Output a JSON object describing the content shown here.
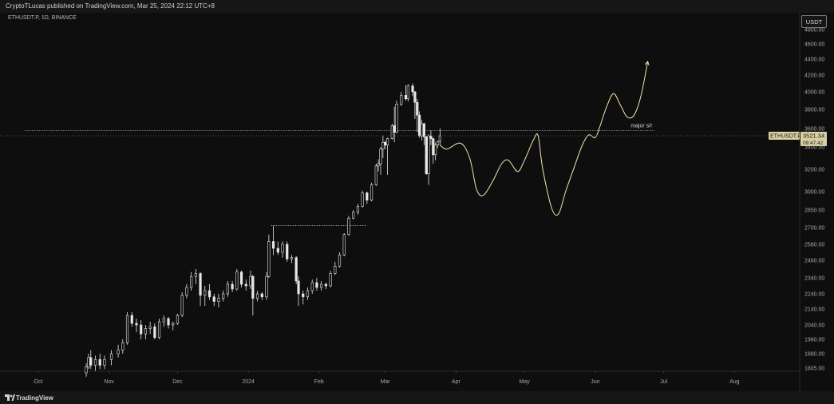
{
  "header": {
    "publish_text": "CryptoTLucas published on TradingView.com, Mar 25, 2024 22:12 UTC+8"
  },
  "chart_header": {
    "symbol_text": "ETHUSDT.P, 1D, BINANCE"
  },
  "currency_button": {
    "label": "USDT"
  },
  "footer": {
    "brand_label": "TradingView"
  },
  "colors": {
    "background": "#0e0e0e",
    "candles": "#e6e6e6",
    "projection": "#f4e6a8",
    "price_tag": "#d8cfa3",
    "sr_line": "#bdbdbd"
  },
  "chart_data": {
    "type": "candlestick",
    "symbol": "ETHUSDT.P",
    "interval": "1D",
    "exchange": "BINANCE",
    "y_axis": {
      "ticks": [
        4800,
        4600,
        4400,
        4200,
        4000,
        3800,
        3600,
        3400,
        3200,
        3000,
        2850,
        2700,
        2580,
        2460,
        2340,
        2240,
        2140,
        2040,
        1960,
        1880,
        1805
      ],
      "tick_labels": [
        "4800.00",
        "4600.00",
        "4400.00",
        "4200.00",
        "4000.00",
        "3800.00",
        "3600.00",
        "3400.00",
        "3200.00",
        "3000.00",
        "2850.00",
        "2700.00",
        "2580.00",
        "2460.00",
        "2340.00",
        "2240.00",
        "2140.00",
        "2040.00",
        "1960.00",
        "1880.00",
        "1805.00"
      ]
    },
    "x_axis": {
      "tick_labels": [
        "Oct",
        "Nov",
        "Dec",
        "2024",
        "Feb",
        "Mar",
        "Apr",
        "May",
        "Jun",
        "Jul",
        "Aug"
      ],
      "tick_dates": [
        "2023-10-01",
        "2023-11-01",
        "2023-12-01",
        "2024-01-01",
        "2024-02-01",
        "2024-03-01",
        "2024-04-01",
        "2024-05-01",
        "2024-06-01",
        "2024-07-01",
        "2024-08-01"
      ]
    },
    "last_price": {
      "symbol_label": "ETHUSDT.P",
      "value": "3521.34",
      "countdown": "09:47:42"
    },
    "annotations": [
      {
        "type": "horizontal_line",
        "label": "major s/r",
        "price": 3580,
        "from_date": "2023-09-25",
        "to_date": "2024-06-27"
      },
      {
        "type": "horizontal_line",
        "label": "",
        "price": 2717,
        "from_date": "2024-01-11",
        "to_date": "2024-02-22"
      },
      {
        "type": "projection_path",
        "label": "",
        "points": [
          {
            "date": "2024-03-25",
            "price": 3420
          },
          {
            "date": "2024-03-28",
            "price": 3380
          },
          {
            "date": "2024-04-03",
            "price": 3440
          },
          {
            "date": "2024-04-07",
            "price": 3300
          },
          {
            "date": "2024-04-10",
            "price": 3020
          },
          {
            "date": "2024-04-13",
            "price": 2970
          },
          {
            "date": "2024-04-17",
            "price": 3090
          },
          {
            "date": "2024-04-21",
            "price": 3250
          },
          {
            "date": "2024-04-24",
            "price": 3280
          },
          {
            "date": "2024-04-28",
            "price": 3180
          },
          {
            "date": "2024-05-01",
            "price": 3280
          },
          {
            "date": "2024-05-05",
            "price": 3480
          },
          {
            "date": "2024-05-07",
            "price": 3520
          },
          {
            "date": "2024-05-09",
            "price": 3200
          },
          {
            "date": "2024-05-13",
            "price": 2860
          },
          {
            "date": "2024-05-16",
            "price": 2820
          },
          {
            "date": "2024-05-19",
            "price": 3000
          },
          {
            "date": "2024-05-23",
            "price": 3230
          },
          {
            "date": "2024-05-26",
            "price": 3400
          },
          {
            "date": "2024-05-29",
            "price": 3530
          },
          {
            "date": "2024-06-01",
            "price": 3500
          },
          {
            "date": "2024-06-03",
            "price": 3620
          },
          {
            "date": "2024-06-06",
            "price": 3830
          },
          {
            "date": "2024-06-09",
            "price": 3980
          },
          {
            "date": "2024-06-12",
            "price": 3850
          },
          {
            "date": "2024-06-15",
            "price": 3720
          },
          {
            "date": "2024-06-18",
            "price": 3740
          },
          {
            "date": "2024-06-21",
            "price": 3950
          },
          {
            "date": "2024-06-24",
            "price": 4370
          }
        ]
      }
    ],
    "candles": [
      {
        "date": "2023-10-22",
        "open": 1780,
        "high": 1830,
        "low": 1760,
        "close": 1810
      },
      {
        "date": "2023-10-23",
        "open": 1810,
        "high": 1880,
        "low": 1800,
        "close": 1860
      },
      {
        "date": "2023-10-24",
        "open": 1860,
        "high": 1900,
        "low": 1800,
        "close": 1820
      },
      {
        "date": "2023-10-26",
        "open": 1820,
        "high": 1870,
        "low": 1790,
        "close": 1850
      },
      {
        "date": "2023-10-28",
        "open": 1850,
        "high": 1880,
        "low": 1800,
        "close": 1820
      },
      {
        "date": "2023-10-30",
        "open": 1820,
        "high": 1870,
        "low": 1800,
        "close": 1850
      },
      {
        "date": "2023-11-02",
        "open": 1850,
        "high": 1900,
        "low": 1820,
        "close": 1880
      },
      {
        "date": "2023-11-05",
        "open": 1880,
        "high": 1930,
        "low": 1860,
        "close": 1900
      },
      {
        "date": "2023-11-07",
        "open": 1900,
        "high": 1960,
        "low": 1880,
        "close": 1940
      },
      {
        "date": "2023-11-09",
        "open": 1940,
        "high": 2120,
        "low": 1930,
        "close": 2100
      },
      {
        "date": "2023-11-11",
        "open": 2100,
        "high": 2120,
        "low": 2030,
        "close": 2050
      },
      {
        "date": "2023-11-13",
        "open": 2050,
        "high": 2080,
        "low": 2000,
        "close": 2040
      },
      {
        "date": "2023-11-15",
        "open": 2040,
        "high": 2070,
        "low": 1960,
        "close": 1990
      },
      {
        "date": "2023-11-17",
        "open": 1990,
        "high": 2040,
        "low": 1960,
        "close": 2020
      },
      {
        "date": "2023-11-19",
        "open": 2020,
        "high": 2060,
        "low": 1990,
        "close": 2030
      },
      {
        "date": "2023-11-21",
        "open": 2030,
        "high": 2050,
        "low": 1960,
        "close": 1970
      },
      {
        "date": "2023-11-23",
        "open": 1970,
        "high": 2080,
        "low": 1960,
        "close": 2060
      },
      {
        "date": "2023-11-25",
        "open": 2060,
        "high": 2100,
        "low": 2030,
        "close": 2080
      },
      {
        "date": "2023-11-27",
        "open": 2080,
        "high": 2090,
        "low": 2020,
        "close": 2040
      },
      {
        "date": "2023-11-29",
        "open": 2040,
        "high": 2060,
        "low": 2010,
        "close": 2050
      },
      {
        "date": "2023-12-01",
        "open": 2050,
        "high": 2110,
        "low": 2040,
        "close": 2100
      },
      {
        "date": "2023-12-03",
        "open": 2100,
        "high": 2250,
        "low": 2090,
        "close": 2230
      },
      {
        "date": "2023-12-05",
        "open": 2230,
        "high": 2300,
        "low": 2210,
        "close": 2280
      },
      {
        "date": "2023-12-07",
        "open": 2280,
        "high": 2380,
        "low": 2260,
        "close": 2350
      },
      {
        "date": "2023-12-09",
        "open": 2350,
        "high": 2400,
        "low": 2300,
        "close": 2370
      },
      {
        "date": "2023-12-11",
        "open": 2370,
        "high": 2380,
        "low": 2160,
        "close": 2230
      },
      {
        "date": "2023-12-13",
        "open": 2230,
        "high": 2290,
        "low": 2160,
        "close": 2260
      },
      {
        "date": "2023-12-15",
        "open": 2260,
        "high": 2300,
        "low": 2200,
        "close": 2220
      },
      {
        "date": "2023-12-17",
        "open": 2220,
        "high": 2240,
        "low": 2160,
        "close": 2190
      },
      {
        "date": "2023-12-19",
        "open": 2190,
        "high": 2240,
        "low": 2150,
        "close": 2210
      },
      {
        "date": "2023-12-21",
        "open": 2210,
        "high": 2260,
        "low": 2190,
        "close": 2240
      },
      {
        "date": "2023-12-23",
        "open": 2240,
        "high": 2320,
        "low": 2220,
        "close": 2300
      },
      {
        "date": "2023-12-25",
        "open": 2300,
        "high": 2320,
        "low": 2250,
        "close": 2270
      },
      {
        "date": "2023-12-27",
        "open": 2270,
        "high": 2400,
        "low": 2260,
        "close": 2380
      },
      {
        "date": "2023-12-29",
        "open": 2380,
        "high": 2390,
        "low": 2280,
        "close": 2300
      },
      {
        "date": "2023-12-31",
        "open": 2300,
        "high": 2330,
        "low": 2260,
        "close": 2290
      },
      {
        "date": "2024-01-02",
        "open": 2290,
        "high": 2390,
        "low": 2270,
        "close": 2350
      },
      {
        "date": "2024-01-03",
        "open": 2350,
        "high": 2360,
        "low": 2100,
        "close": 2210
      },
      {
        "date": "2024-01-05",
        "open": 2210,
        "high": 2260,
        "low": 2190,
        "close": 2240
      },
      {
        "date": "2024-01-07",
        "open": 2240,
        "high": 2250,
        "low": 2200,
        "close": 2220
      },
      {
        "date": "2024-01-09",
        "open": 2220,
        "high": 2380,
        "low": 2200,
        "close": 2350
      },
      {
        "date": "2024-01-10",
        "open": 2350,
        "high": 2650,
        "low": 2340,
        "close": 2600
      },
      {
        "date": "2024-01-12",
        "open": 2600,
        "high": 2715,
        "low": 2500,
        "close": 2550
      },
      {
        "date": "2024-01-14",
        "open": 2550,
        "high": 2600,
        "low": 2500,
        "close": 2520
      },
      {
        "date": "2024-01-16",
        "open": 2520,
        "high": 2600,
        "low": 2480,
        "close": 2580
      },
      {
        "date": "2024-01-18",
        "open": 2580,
        "high": 2600,
        "low": 2450,
        "close": 2470
      },
      {
        "date": "2024-01-20",
        "open": 2470,
        "high": 2500,
        "low": 2440,
        "close": 2480
      },
      {
        "date": "2024-01-22",
        "open": 2480,
        "high": 2490,
        "low": 2300,
        "close": 2320
      },
      {
        "date": "2024-01-23",
        "open": 2320,
        "high": 2350,
        "low": 2160,
        "close": 2240
      },
      {
        "date": "2024-01-25",
        "open": 2240,
        "high": 2260,
        "low": 2170,
        "close": 2220
      },
      {
        "date": "2024-01-27",
        "open": 2220,
        "high": 2280,
        "low": 2200,
        "close": 2260
      },
      {
        "date": "2024-01-29",
        "open": 2260,
        "high": 2330,
        "low": 2240,
        "close": 2310
      },
      {
        "date": "2024-01-31",
        "open": 2310,
        "high": 2340,
        "low": 2260,
        "close": 2280
      },
      {
        "date": "2024-02-02",
        "open": 2280,
        "high": 2320,
        "low": 2260,
        "close": 2300
      },
      {
        "date": "2024-02-04",
        "open": 2300,
        "high": 2310,
        "low": 2270,
        "close": 2290
      },
      {
        "date": "2024-02-06",
        "open": 2290,
        "high": 2390,
        "low": 2280,
        "close": 2370
      },
      {
        "date": "2024-02-08",
        "open": 2370,
        "high": 2450,
        "low": 2360,
        "close": 2420
      },
      {
        "date": "2024-02-10",
        "open": 2420,
        "high": 2520,
        "low": 2410,
        "close": 2500
      },
      {
        "date": "2024-02-12",
        "open": 2500,
        "high": 2660,
        "low": 2490,
        "close": 2650
      },
      {
        "date": "2024-02-14",
        "open": 2650,
        "high": 2800,
        "low": 2640,
        "close": 2780
      },
      {
        "date": "2024-02-16",
        "open": 2780,
        "high": 2850,
        "low": 2770,
        "close": 2830
      },
      {
        "date": "2024-02-18",
        "open": 2830,
        "high": 2900,
        "low": 2810,
        "close": 2880
      },
      {
        "date": "2024-02-20",
        "open": 2880,
        "high": 3010,
        "low": 2870,
        "close": 2990
      },
      {
        "date": "2024-02-22",
        "open": 2990,
        "high": 3000,
        "low": 2900,
        "close": 2930
      },
      {
        "date": "2024-02-24",
        "open": 2930,
        "high": 3080,
        "low": 2920,
        "close": 3060
      },
      {
        "date": "2024-02-26",
        "open": 3060,
        "high": 3250,
        "low": 3050,
        "close": 3230
      },
      {
        "date": "2024-02-27",
        "open": 3230,
        "high": 3290,
        "low": 3180,
        "close": 3250
      },
      {
        "date": "2024-02-28",
        "open": 3250,
        "high": 3400,
        "low": 3150,
        "close": 3380
      },
      {
        "date": "2024-02-29",
        "open": 3380,
        "high": 3520,
        "low": 3300,
        "close": 3450
      },
      {
        "date": "2024-03-01",
        "open": 3450,
        "high": 3470,
        "low": 3380,
        "close": 3420
      },
      {
        "date": "2024-03-02",
        "open": 3420,
        "high": 3500,
        "low": 3150,
        "close": 3490
      },
      {
        "date": "2024-03-04",
        "open": 3490,
        "high": 3650,
        "low": 3480,
        "close": 3630
      },
      {
        "date": "2024-03-05",
        "open": 3630,
        "high": 3830,
        "low": 3450,
        "close": 3560
      },
      {
        "date": "2024-03-06",
        "open": 3560,
        "high": 3900,
        "low": 3550,
        "close": 3860
      },
      {
        "date": "2024-03-08",
        "open": 3860,
        "high": 4000,
        "low": 3840,
        "close": 3960
      },
      {
        "date": "2024-03-10",
        "open": 3960,
        "high": 4080,
        "low": 3900,
        "close": 3920
      },
      {
        "date": "2024-03-11",
        "open": 3920,
        "high": 4090,
        "low": 3890,
        "close": 4070
      },
      {
        "date": "2024-03-13",
        "open": 4070,
        "high": 4100,
        "low": 3950,
        "close": 4000
      },
      {
        "date": "2024-03-14",
        "open": 4000,
        "high": 4010,
        "low": 3700,
        "close": 3880
      },
      {
        "date": "2024-03-15",
        "open": 3880,
        "high": 3920,
        "low": 3560,
        "close": 3740
      },
      {
        "date": "2024-03-16",
        "open": 3740,
        "high": 3780,
        "low": 3500,
        "close": 3520
      },
      {
        "date": "2024-03-17",
        "open": 3520,
        "high": 3690,
        "low": 3470,
        "close": 3650
      },
      {
        "date": "2024-03-18",
        "open": 3650,
        "high": 3660,
        "low": 3420,
        "close": 3510
      },
      {
        "date": "2024-03-19",
        "open": 3510,
        "high": 3520,
        "low": 3150,
        "close": 3160
      },
      {
        "date": "2024-03-20",
        "open": 3160,
        "high": 3540,
        "low": 3060,
        "close": 3520
      },
      {
        "date": "2024-03-21",
        "open": 3520,
        "high": 3580,
        "low": 3420,
        "close": 3490
      },
      {
        "date": "2024-03-22",
        "open": 3490,
        "high": 3500,
        "low": 3250,
        "close": 3330
      },
      {
        "date": "2024-03-23",
        "open": 3330,
        "high": 3450,
        "low": 3280,
        "close": 3420
      },
      {
        "date": "2024-03-24",
        "open": 3420,
        "high": 3470,
        "low": 3390,
        "close": 3460
      },
      {
        "date": "2024-03-25",
        "open": 3460,
        "high": 3600,
        "low": 3420,
        "close": 3521
      }
    ]
  }
}
